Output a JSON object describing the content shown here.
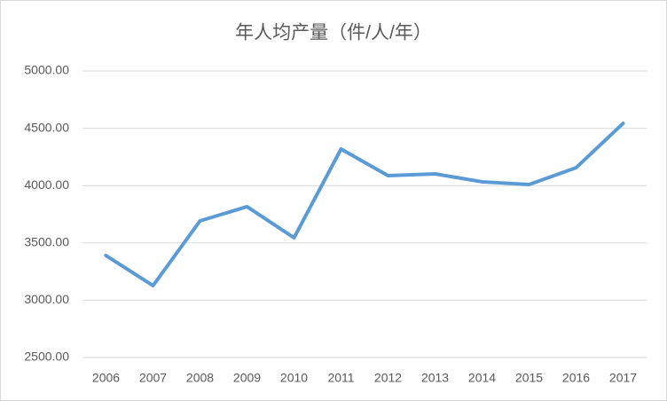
{
  "chart_data": {
    "type": "line",
    "title": "年人均产量（件/人/年）",
    "categories": [
      "2006",
      "2007",
      "2008",
      "2009",
      "2010",
      "2011",
      "2012",
      "2013",
      "2014",
      "2015",
      "2016",
      "2017"
    ],
    "series": [
      {
        "name": "年人均产量",
        "color": "#5b9bd5",
        "values": [
          3390,
          3127,
          3692,
          3816,
          3545,
          4319,
          4087,
          4102,
          4033,
          4009,
          4156,
          4543
        ]
      }
    ],
    "ylim": [
      2500,
      5000
    ],
    "yticks": [
      {
        "value": 2500,
        "label": "2500.00"
      },
      {
        "value": 3000,
        "label": "3000.00"
      },
      {
        "value": 3500,
        "label": "3500.00"
      },
      {
        "value": 4000,
        "label": "4000.00"
      },
      {
        "value": 4500,
        "label": "4500.00"
      },
      {
        "value": 5000,
        "label": "5000.00"
      }
    ],
    "grid": true
  }
}
